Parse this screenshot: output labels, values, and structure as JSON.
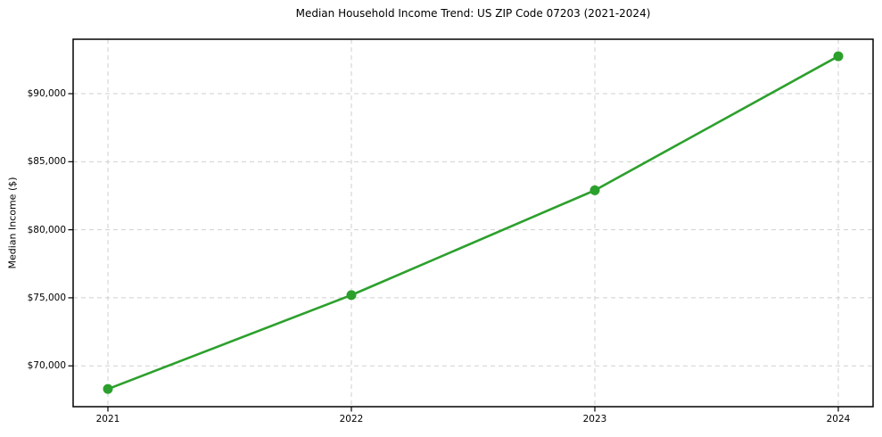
{
  "chart_data": {
    "type": "line",
    "title": "Median Household Income Trend: US ZIP Code 07203 (2021-2024)",
    "xlabel": "",
    "ylabel": "Median Income ($)",
    "categories": [
      "2021",
      "2022",
      "2023",
      "2024"
    ],
    "series": [
      {
        "values": [
          68300,
          75200,
          82900,
          92750
        ],
        "color": "#2ca02c",
        "marker": "circle"
      }
    ],
    "ylim": [
      67000,
      94000
    ],
    "yticks": [
      70000,
      75000,
      80000,
      85000,
      90000
    ],
    "ytick_labels": [
      "$70,000",
      "$75,000",
      "$80,000",
      "$85,000",
      "$90,000"
    ],
    "xtick_labels": [
      "2021",
      "2022",
      "2023",
      "2024"
    ],
    "grid": true,
    "grid_style": "dashed",
    "grid_color": "#cfcfcf",
    "axis_color": "#000000",
    "background_color": "#ffffff",
    "legend": "none"
  }
}
